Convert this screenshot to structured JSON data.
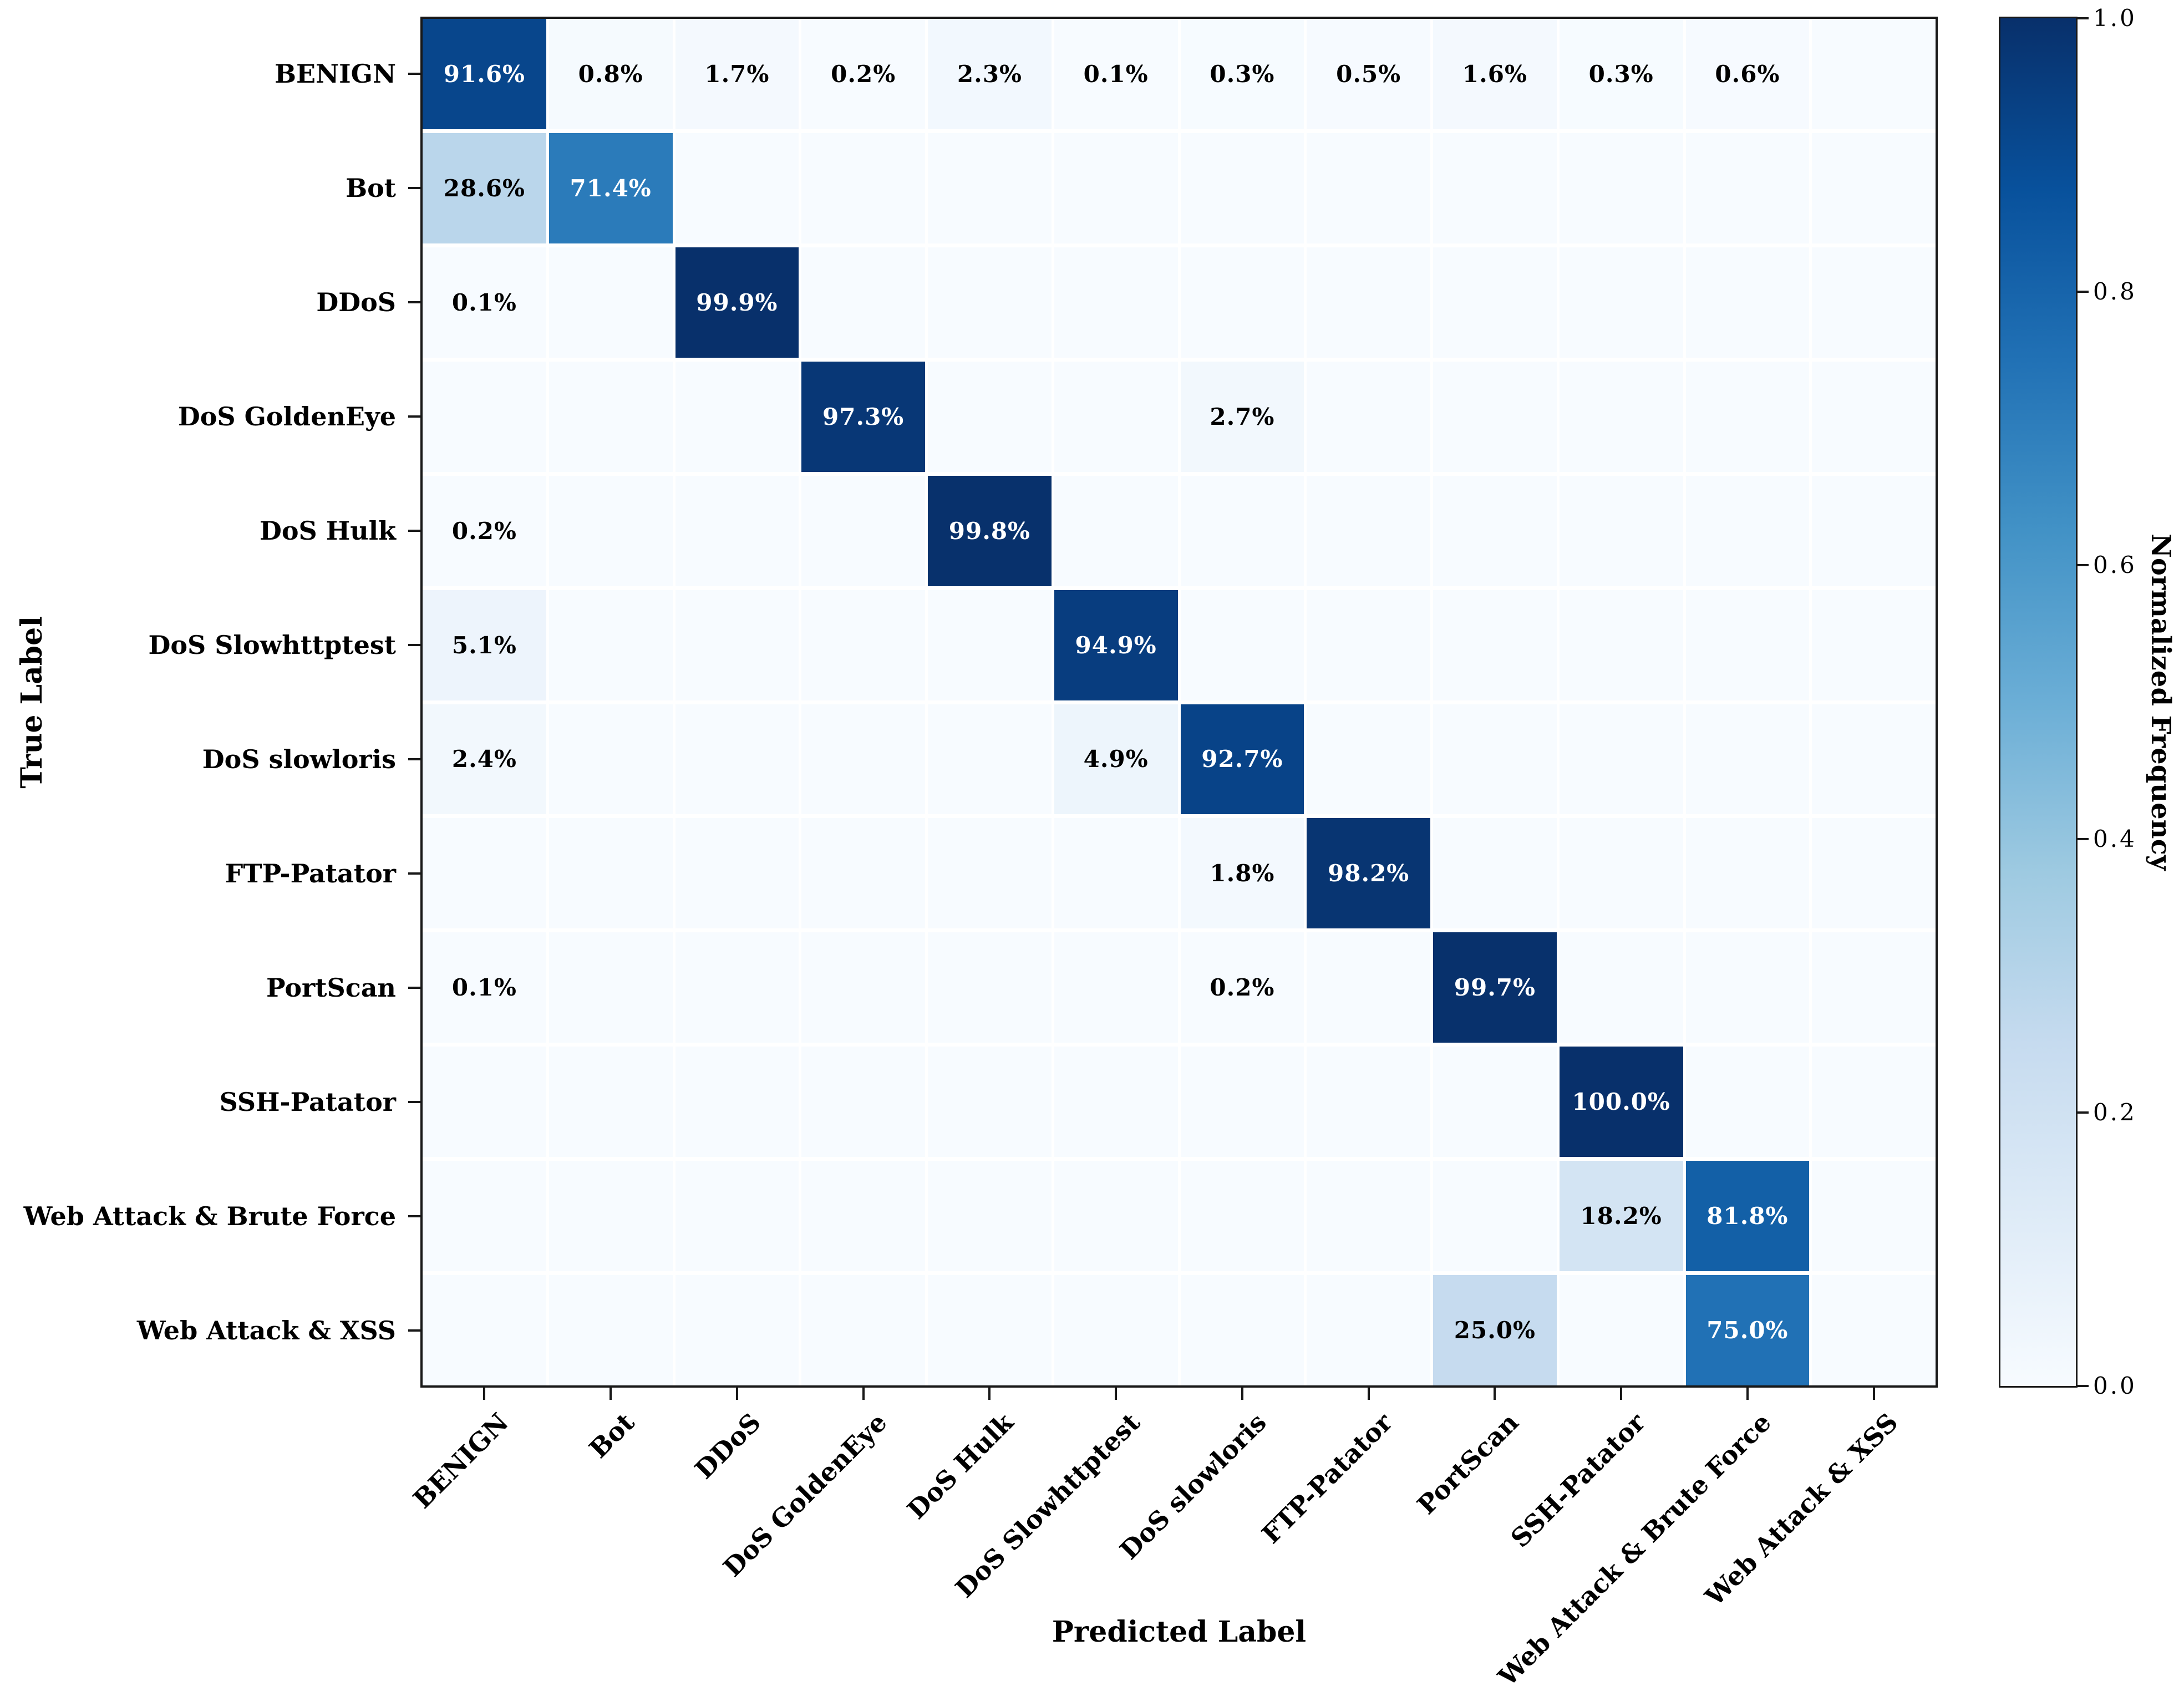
{
  "chart_data": {
    "type": "heatmap",
    "title": "",
    "xlabel": "Predicted Label",
    "ylabel": "True Label",
    "colorbar_label": "Normalized Frequency",
    "colorbar_ticks": [
      "0.0",
      "0.2",
      "0.4",
      "0.6",
      "0.8",
      "1.0"
    ],
    "colorbar_range": [
      0.0,
      1.0
    ],
    "classes": [
      "BENIGN",
      "Bot",
      "DDoS",
      "DoS GoldenEye",
      "DoS Hulk",
      "DoS Slowhttptest",
      "DoS slowloris",
      "FTP-Patator",
      "PortScan",
      "SSH-Patator",
      "Web Attack & Brute Force",
      "Web Attack & XSS"
    ],
    "rows": [
      {
        "label": "BENIGN",
        "cells": [
          "91.6%",
          "0.8%",
          "1.7%",
          "0.2%",
          "2.3%",
          "0.1%",
          "0.3%",
          "0.5%",
          "1.6%",
          "0.3%",
          "0.6%",
          ""
        ]
      },
      {
        "label": "Bot",
        "cells": [
          "28.6%",
          "71.4%",
          "",
          "",
          "",
          "",
          "",
          "",
          "",
          "",
          "",
          ""
        ]
      },
      {
        "label": "DDoS",
        "cells": [
          "0.1%",
          "",
          "99.9%",
          "",
          "",
          "",
          "",
          "",
          "",
          "",
          "",
          ""
        ]
      },
      {
        "label": "DoS GoldenEye",
        "cells": [
          "",
          "",
          "",
          "97.3%",
          "",
          "",
          "2.7%",
          "",
          "",
          "",
          "",
          ""
        ]
      },
      {
        "label": "DoS Hulk",
        "cells": [
          "0.2%",
          "",
          "",
          "",
          "99.8%",
          "",
          "",
          "",
          "",
          "",
          "",
          ""
        ]
      },
      {
        "label": "DoS Slowhttptest",
        "cells": [
          "5.1%",
          "",
          "",
          "",
          "",
          "94.9%",
          "",
          "",
          "",
          "",
          "",
          ""
        ]
      },
      {
        "label": "DoS slowloris",
        "cells": [
          "2.4%",
          "",
          "",
          "",
          "",
          "4.9%",
          "92.7%",
          "",
          "",
          "",
          "",
          ""
        ]
      },
      {
        "label": "FTP-Patator",
        "cells": [
          "",
          "",
          "",
          "",
          "",
          "",
          "1.8%",
          "98.2%",
          "",
          "",
          "",
          ""
        ]
      },
      {
        "label": "PortScan",
        "cells": [
          "0.1%",
          "",
          "",
          "",
          "",
          "",
          "0.2%",
          "",
          "99.7%",
          "",
          "",
          ""
        ]
      },
      {
        "label": "SSH-Patator",
        "cells": [
          "",
          "",
          "",
          "",
          "",
          "",
          "",
          "",
          "",
          "100.0%",
          "",
          ""
        ]
      },
      {
        "label": "Web Attack & Brute Force",
        "cells": [
          "",
          "",
          "",
          "",
          "",
          "",
          "",
          "",
          "",
          "18.2%",
          "81.8%",
          ""
        ]
      },
      {
        "label": "Web Attack & XSS",
        "cells": [
          "",
          "",
          "",
          "",
          "",
          "",
          "",
          "",
          "25.0%",
          "",
          "75.0%",
          ""
        ]
      }
    ],
    "layout_hints": {
      "values_are_percent": true,
      "grid": "white gaps between cells",
      "legend_position": "right colorbar"
    },
    "colors": {
      "colormap_name": "Blues",
      "colormap_anchors": [
        [
          0.0,
          "#f7fbff"
        ],
        [
          0.125,
          "#deebf7"
        ],
        [
          0.25,
          "#c6dbef"
        ],
        [
          0.375,
          "#9ecae1"
        ],
        [
          0.5,
          "#6baed6"
        ],
        [
          0.625,
          "#4292c6"
        ],
        [
          0.75,
          "#2171b5"
        ],
        [
          0.875,
          "#08519c"
        ],
        [
          1.0,
          "#08306b"
        ]
      ],
      "annotation_dark_text": "#000000",
      "annotation_light_text": "#ffffff",
      "frame": "#181818"
    }
  }
}
